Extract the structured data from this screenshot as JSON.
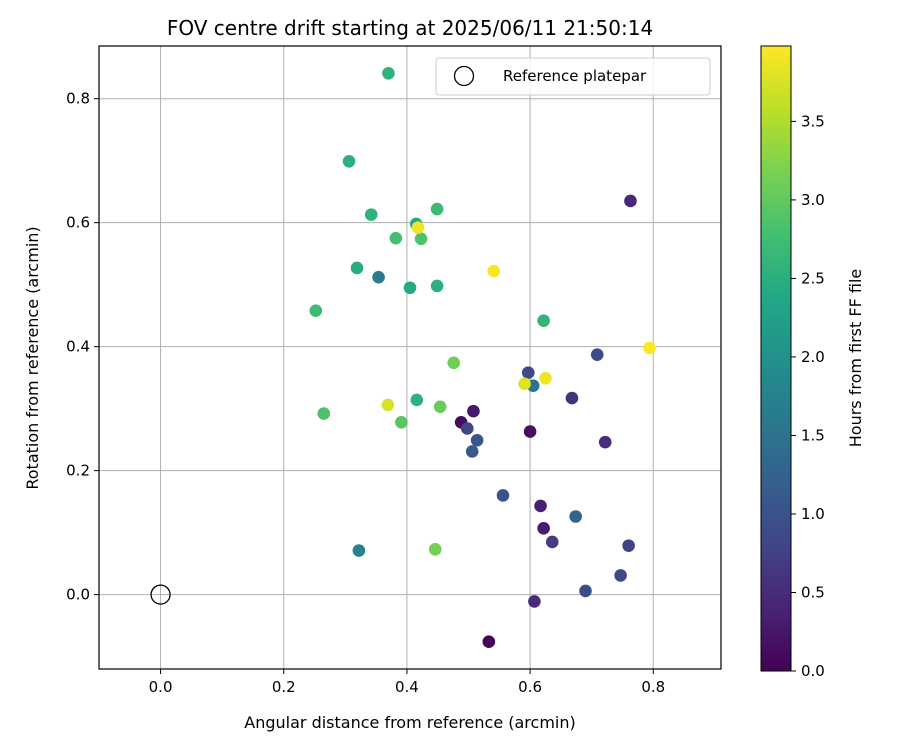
{
  "chart_data": {
    "type": "scatter",
    "title": "FOV centre drift starting at 2025/06/11 21:50:14",
    "xlabel": "Angular distance from reference (arcmin)",
    "ylabel": "Rotation from reference (arcmin)",
    "xlim": [
      -0.1,
      0.91
    ],
    "ylim": [
      -0.12,
      0.885
    ],
    "xticks": [
      0.0,
      0.2,
      0.4,
      0.6,
      0.8
    ],
    "xtick_labels": [
      "0.0",
      "0.2",
      "0.4",
      "0.6",
      "0.8"
    ],
    "yticks": [
      0.0,
      0.2,
      0.4,
      0.6,
      0.8
    ],
    "ytick_labels": [
      "0.0",
      "0.2",
      "0.4",
      "0.6",
      "0.8"
    ],
    "grid": true,
    "colormap": "viridis",
    "colorbar": {
      "label": "Hours from first FF file",
      "range": [
        0.0,
        3.98
      ],
      "ticks": [
        0.0,
        0.5,
        1.0,
        1.5,
        2.0,
        2.5,
        3.0,
        3.5
      ],
      "tick_labels": [
        "0.0",
        "0.5",
        "1.0",
        "1.5",
        "2.0",
        "2.5",
        "3.0",
        "3.5"
      ]
    },
    "legend": {
      "placement": "top-right",
      "entries": [
        {
          "label": "Reference platepar",
          "marker": "open-circle"
        }
      ]
    },
    "reference_point": {
      "x": 0.0,
      "y": 0.0
    },
    "points": [
      {
        "x": 0.533,
        "y": -0.076,
        "c": 0.05
      },
      {
        "x": 0.488,
        "y": 0.278,
        "c": 0.1
      },
      {
        "x": 0.6,
        "y": 0.263,
        "c": 0.15
      },
      {
        "x": 0.508,
        "y": 0.296,
        "c": 0.25
      },
      {
        "x": 0.622,
        "y": 0.107,
        "c": 0.3
      },
      {
        "x": 0.617,
        "y": 0.143,
        "c": 0.35
      },
      {
        "x": 0.763,
        "y": 0.635,
        "c": 0.45
      },
      {
        "x": 0.607,
        "y": -0.011,
        "c": 0.5
      },
      {
        "x": 0.722,
        "y": 0.246,
        "c": 0.5
      },
      {
        "x": 0.668,
        "y": 0.317,
        "c": 0.6
      },
      {
        "x": 0.636,
        "y": 0.085,
        "c": 0.7
      },
      {
        "x": 0.76,
        "y": 0.079,
        "c": 0.8
      },
      {
        "x": 0.498,
        "y": 0.268,
        "c": 0.8
      },
      {
        "x": 0.747,
        "y": 0.031,
        "c": 0.85
      },
      {
        "x": 0.597,
        "y": 0.358,
        "c": 0.85
      },
      {
        "x": 0.709,
        "y": 0.387,
        "c": 0.9
      },
      {
        "x": 0.69,
        "y": 0.006,
        "c": 0.95
      },
      {
        "x": 0.556,
        "y": 0.16,
        "c": 1.0
      },
      {
        "x": 0.514,
        "y": 0.249,
        "c": 1.05
      },
      {
        "x": 0.506,
        "y": 0.231,
        "c": 1.1
      },
      {
        "x": 0.674,
        "y": 0.126,
        "c": 1.25
      },
      {
        "x": 0.605,
        "y": 0.337,
        "c": 1.5
      },
      {
        "x": 0.354,
        "y": 0.512,
        "c": 1.65
      },
      {
        "x": 0.322,
        "y": 0.071,
        "c": 1.75
      },
      {
        "x": 0.415,
        "y": 0.598,
        "c": 2.4
      },
      {
        "x": 0.405,
        "y": 0.495,
        "c": 2.4
      },
      {
        "x": 0.319,
        "y": 0.527,
        "c": 2.45
      },
      {
        "x": 0.306,
        "y": 0.699,
        "c": 2.5
      },
      {
        "x": 0.449,
        "y": 0.498,
        "c": 2.5
      },
      {
        "x": 0.37,
        "y": 0.841,
        "c": 2.55
      },
      {
        "x": 0.342,
        "y": 0.613,
        "c": 2.55
      },
      {
        "x": 0.416,
        "y": 0.314,
        "c": 2.55
      },
      {
        "x": 0.622,
        "y": 0.442,
        "c": 2.6
      },
      {
        "x": 0.449,
        "y": 0.622,
        "c": 2.7
      },
      {
        "x": 0.252,
        "y": 0.458,
        "c": 2.7
      },
      {
        "x": 0.382,
        "y": 0.575,
        "c": 2.8
      },
      {
        "x": 0.423,
        "y": 0.574,
        "c": 2.85
      },
      {
        "x": 0.265,
        "y": 0.292,
        "c": 2.85
      },
      {
        "x": 0.391,
        "y": 0.278,
        "c": 2.95
      },
      {
        "x": 0.454,
        "y": 0.303,
        "c": 3.05
      },
      {
        "x": 0.476,
        "y": 0.374,
        "c": 3.1
      },
      {
        "x": 0.446,
        "y": 0.073,
        "c": 3.15
      },
      {
        "x": 0.369,
        "y": 0.306,
        "c": 3.75
      },
      {
        "x": 0.591,
        "y": 0.34,
        "c": 3.8
      },
      {
        "x": 0.418,
        "y": 0.592,
        "c": 3.88
      },
      {
        "x": 0.625,
        "y": 0.349,
        "c": 3.9
      },
      {
        "x": 0.541,
        "y": 0.522,
        "c": 3.95
      },
      {
        "x": 0.794,
        "y": 0.398,
        "c": 3.98
      }
    ]
  }
}
